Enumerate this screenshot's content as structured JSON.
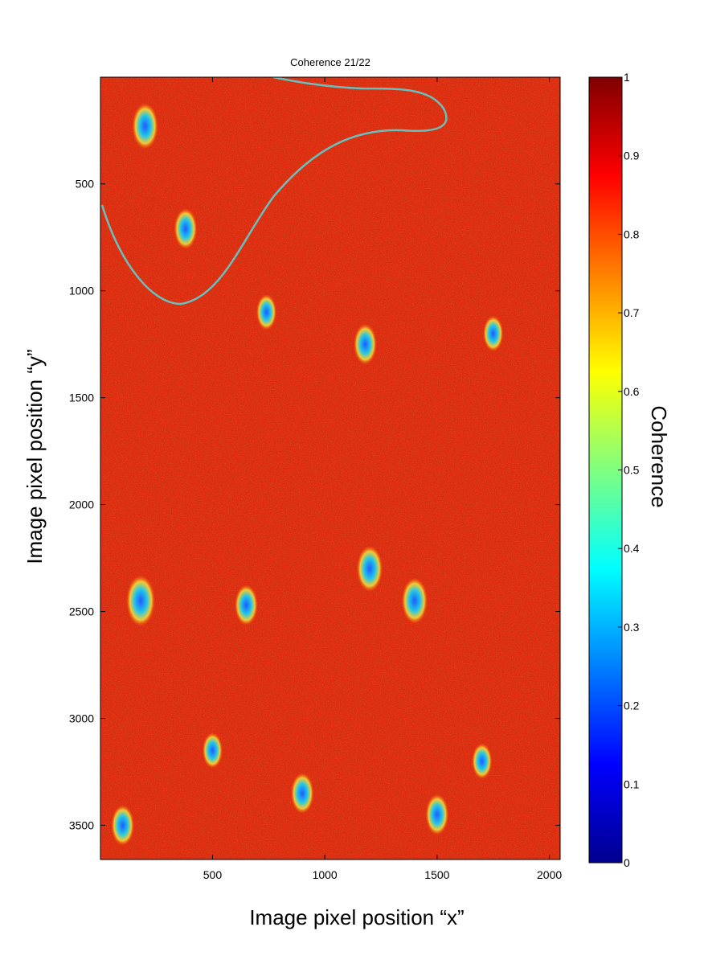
{
  "chart_data": {
    "type": "heatmap",
    "title": "Coherence 21/22",
    "xlabel": "Image pixel position “x”",
    "ylabel": "Image pixel position “y”",
    "xlim": [
      1,
      2048
    ],
    "ylim": [
      3660,
      1
    ],
    "x_ticks": [
      500,
      1000,
      1500,
      2000
    ],
    "y_ticks": [
      500,
      1000,
      1500,
      2000,
      2500,
      3000,
      3500
    ],
    "colorbar": {
      "label": "Coherence",
      "range": [
        0,
        1
      ],
      "ticks": [
        0,
        0.1,
        0.2,
        0.3,
        0.4,
        0.5,
        0.6,
        0.7,
        0.8,
        0.9,
        1
      ],
      "tick_labels": [
        "0",
        "0.1",
        "0.2",
        "0.3",
        "0.4",
        "0.5",
        "0.6",
        "0.7",
        "0.8",
        "0.9",
        "1"
      ],
      "colormap": [
        "#00008f",
        "#0000ff",
        "#00ffff",
        "#ffff00",
        "#ff0000",
        "#800000"
      ]
    },
    "background_coherence": 0.9,
    "low_coherence_features": [
      {
        "x": 200,
        "y": 230,
        "coherence": 0.3
      },
      {
        "x": 380,
        "y": 710,
        "coherence": 0.35
      },
      {
        "x": 740,
        "y": 1100,
        "coherence": 0.4
      },
      {
        "x": 1180,
        "y": 1250,
        "coherence": 0.35
      },
      {
        "x": 1750,
        "y": 1200,
        "coherence": 0.4
      },
      {
        "x": 1200,
        "y": 2300,
        "coherence": 0.3
      },
      {
        "x": 1400,
        "y": 2450,
        "coherence": 0.3
      },
      {
        "x": 180,
        "y": 2450,
        "coherence": 0.25
      },
      {
        "x": 650,
        "y": 2470,
        "coherence": 0.35
      },
      {
        "x": 500,
        "y": 3150,
        "coherence": 0.4
      },
      {
        "x": 900,
        "y": 3350,
        "coherence": 0.35
      },
      {
        "x": 1500,
        "y": 3450,
        "coherence": 0.35
      },
      {
        "x": 100,
        "y": 3500,
        "coherence": 0.35
      },
      {
        "x": 1700,
        "y": 3200,
        "coherence": 0.4
      }
    ]
  }
}
